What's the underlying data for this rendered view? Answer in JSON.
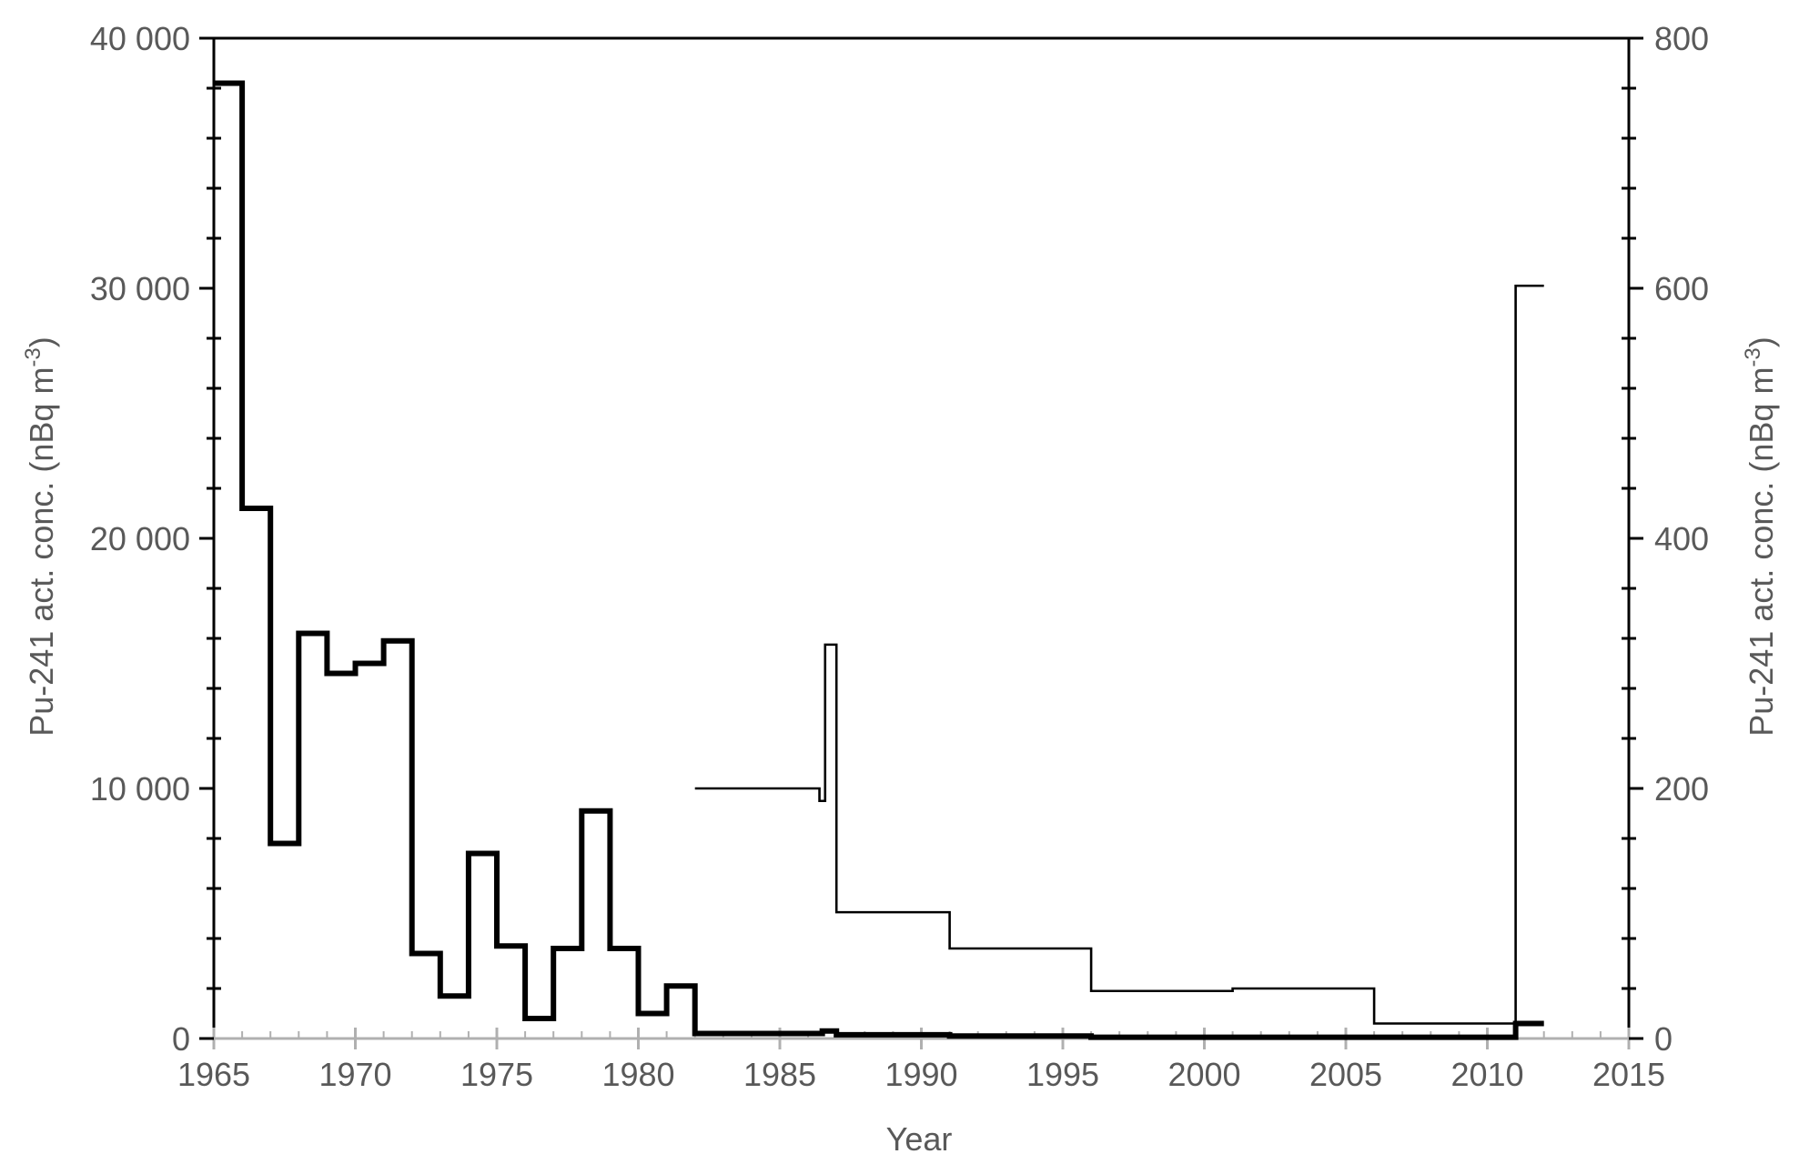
{
  "chart_data": {
    "type": "line",
    "style": "step",
    "xlabel": "Year",
    "ylabel_left": {
      "main": "Pu-241 act. conc. (nBq m",
      "sup": "-3",
      "end": ")"
    },
    "ylabel_right": {
      "main": "Pu-241 act. conc. (nBq m",
      "sup": "-3",
      "end": ")"
    },
    "xlim": [
      1965,
      2015
    ],
    "ylim_left": [
      0,
      40000
    ],
    "ylim_right": [
      0,
      800
    ],
    "x_ticks": [
      "1965",
      "1970",
      "1975",
      "1980",
      "1985",
      "1990",
      "1995",
      "2000",
      "2005",
      "2010",
      "2015"
    ],
    "y_left_ticks": [
      "0",
      "10 000",
      "20 000",
      "30 000",
      "40 000"
    ],
    "y_right_ticks": [
      "0",
      "200",
      "400",
      "600",
      "800"
    ],
    "grid": false,
    "legend": "none",
    "series": [
      {
        "axis": "left",
        "line": "thick",
        "color": "#000000",
        "steps": [
          [
            1965.0,
            38200
          ],
          [
            1966.0,
            21200
          ],
          [
            1967.0,
            7800
          ],
          [
            1968.0,
            16200
          ],
          [
            1969.0,
            14600
          ],
          [
            1970.0,
            15000
          ],
          [
            1971.0,
            15900
          ],
          [
            1972.0,
            3400
          ],
          [
            1973.0,
            1700
          ],
          [
            1974.0,
            7400
          ],
          [
            1975.0,
            3700
          ],
          [
            1976.0,
            800
          ],
          [
            1977.0,
            3600
          ],
          [
            1978.0,
            9100
          ],
          [
            1979.0,
            3600
          ],
          [
            1980.0,
            1000
          ],
          [
            1981.0,
            2100
          ],
          [
            1982.0,
            200
          ],
          [
            1986.5,
            300
          ],
          [
            1987.0,
            150
          ],
          [
            1991.0,
            100
          ],
          [
            1996.0,
            50
          ],
          [
            2011.0,
            600
          ]
        ],
        "x_end": 2012.0
      },
      {
        "axis": "right",
        "line": "thin",
        "color": "#000000",
        "steps": [
          [
            1982.0,
            200
          ],
          [
            1986.4,
            190
          ],
          [
            1986.6,
            315
          ],
          [
            1987.0,
            101
          ],
          [
            1991.0,
            72
          ],
          [
            1996.0,
            38
          ],
          [
            2001.0,
            40
          ],
          [
            2006.0,
            12
          ],
          [
            2011.0,
            602
          ]
        ],
        "x_end": 2012.0
      }
    ]
  }
}
